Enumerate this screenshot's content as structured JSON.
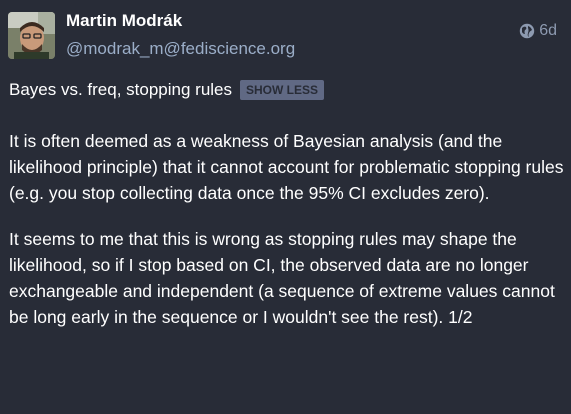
{
  "post": {
    "author_name": "Martin Modrák",
    "author_handle": "@modrak_m@fediscience.org",
    "age": "6d",
    "visibility_icon": "globe-icon",
    "content_warning": "Bayes vs. freq, stopping rules",
    "toggle_label": "SHOW LESS",
    "paragraphs": [
      "It is often deemed as a weakness of Bayesian analysis (and the likelihood principle) that it cannot account for problematic stopping rules (e.g. you stop collecting data once the 95% CI excludes zero).",
      "It seems to me that this is wrong as stopping rules may shape the likelihood, so if I stop based on CI, the observed data are no longer exchangeable and independent (a sequence of extreme values cannot be long early in the sequence or I wouldn't see the rest). 1/2"
    ]
  },
  "colors": {
    "background": "#282c37",
    "handle": "#9baec8",
    "button_bg": "#606984"
  }
}
